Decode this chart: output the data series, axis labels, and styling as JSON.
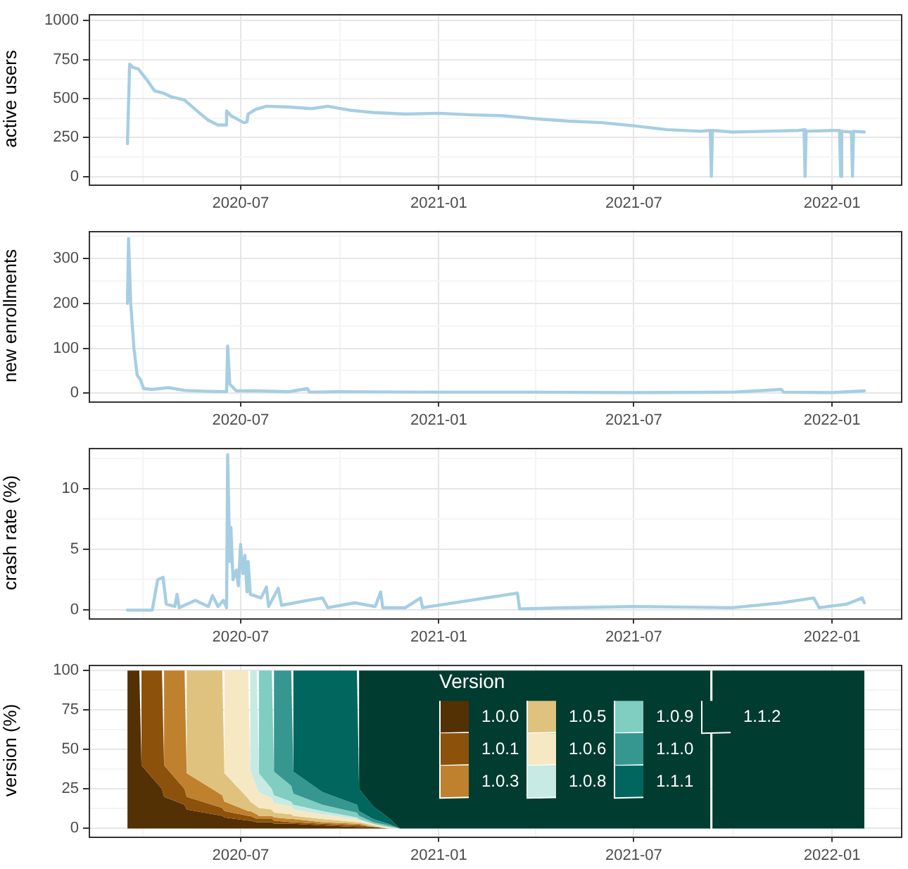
{
  "chart_data": [
    {
      "type": "line",
      "ylabel": "active users",
      "xlim": [
        "2020-02-11",
        "2022-03-06"
      ],
      "ylim": [
        -50,
        1045
      ],
      "xticks": [
        {
          "value": "2020-04",
          "label": null
        },
        "2020-07",
        {
          "value": "2020-10",
          "label": null
        },
        "2021-01",
        {
          "value": "2021-04",
          "label": null
        },
        "2021-07",
        {
          "value": "2021-10",
          "label": null
        },
        "2022-01"
      ],
      "yticks": [
        0,
        {
          "value": 125,
          "label": null
        },
        250,
        {
          "value": 375,
          "label": null
        },
        500,
        {
          "value": 625,
          "label": null
        },
        750,
        {
          "value": 875,
          "label": null
        },
        1000
      ],
      "grid": true,
      "series": [
        {
          "color": "#a6cee3",
          "x": [
            "2020-03-18",
            "2020-03-20",
            "2020-03-23",
            "2020-03-28",
            "2020-04-05",
            "2020-04-12",
            "2020-04-20",
            "2020-04-28",
            "2020-05-10",
            "2020-05-20",
            "2020-06-01",
            "2020-06-10",
            "2020-06-17",
            "2020-06-18",
            "2020-06-22",
            "2020-06-30",
            "2020-07-04",
            "2020-07-07",
            "2020-07-08",
            "2020-07-15",
            "2020-07-25",
            "2020-08-15",
            "2020-09-05",
            "2020-09-20",
            "2020-10-10",
            "2020-11-01",
            "2020-12-01",
            "2021-01-01",
            "2021-02-01",
            "2021-03-01",
            "2021-04-01",
            "2021-05-01",
            "2021-06-01",
            "2021-07-01",
            "2021-08-01",
            "2021-09-01",
            "2021-09-10",
            "2021-09-11",
            "2021-09-12",
            "2021-10-01",
            "2021-11-01",
            "2021-12-01",
            "2021-12-06",
            "2021-12-07",
            "2021-12-08",
            "2022-01-01",
            "2022-01-08",
            "2022-01-09",
            "2022-01-10",
            "2022-01-19",
            "2022-01-20",
            "2022-01-21",
            "2022-01-31"
          ],
          "values": [
            210,
            720,
            700,
            690,
            620,
            550,
            535,
            510,
            490,
            430,
            360,
            330,
            330,
            420,
            390,
            360,
            345,
            350,
            400,
            430,
            450,
            445,
            435,
            450,
            425,
            410,
            400,
            405,
            395,
            390,
            370,
            355,
            345,
            325,
            300,
            290,
            295,
            0,
            295,
            285,
            290,
            295,
            300,
            0,
            290,
            295,
            295,
            0,
            290,
            285,
            0,
            290,
            285
          ]
        }
      ]
    },
    {
      "type": "line",
      "ylabel": "new enrollments",
      "xlim": [
        "2020-02-11",
        "2022-03-06"
      ],
      "ylim": [
        -18,
        363
      ],
      "xticks": [
        {
          "value": "2020-04",
          "label": null
        },
        "2020-07",
        {
          "value": "2020-10",
          "label": null
        },
        "2021-01",
        {
          "value": "2021-04",
          "label": null
        },
        "2021-07",
        {
          "value": "2021-10",
          "label": null
        },
        "2022-01"
      ],
      "yticks": [
        0,
        {
          "value": 50,
          "label": null
        },
        100,
        {
          "value": 150,
          "label": null
        },
        200,
        {
          "value": 250,
          "label": null
        },
        300,
        {
          "value": 350,
          "label": null
        }
      ],
      "grid": true,
      "series": [
        {
          "color": "#a6cee3",
          "x": [
            "2020-03-18",
            "2020-03-19",
            "2020-03-21",
            "2020-03-24",
            "2020-03-27",
            "2020-03-30",
            "2020-04-02",
            "2020-04-10",
            "2020-04-25",
            "2020-05-10",
            "2020-06-01",
            "2020-06-18",
            "2020-06-19",
            "2020-06-21",
            "2020-06-27",
            "2020-07-15",
            "2020-08-15",
            "2020-09-01",
            "2020-09-03",
            "2020-10-01",
            "2021-01-01",
            "2021-04-01",
            "2021-07-01",
            "2021-10-01",
            "2021-11-15",
            "2021-11-17",
            "2022-01-01",
            "2022-01-31"
          ],
          "values": [
            200,
            345,
            200,
            100,
            40,
            30,
            10,
            8,
            12,
            6,
            4,
            3,
            105,
            20,
            5,
            5,
            3,
            10,
            2,
            3,
            2,
            2,
            1,
            2,
            8,
            2,
            1,
            5
          ]
        }
      ]
    },
    {
      "type": "line",
      "ylabel": "crash rate (%)",
      "xlim": [
        "2020-02-11",
        "2022-03-06"
      ],
      "ylim": [
        -0.65,
        13.4
      ],
      "xticks": [
        {
          "value": "2020-04",
          "label": null
        },
        "2020-07",
        {
          "value": "2020-10",
          "label": null
        },
        "2021-01",
        {
          "value": "2021-04",
          "label": null
        },
        "2021-07",
        {
          "value": "2021-10",
          "label": null
        },
        "2022-01"
      ],
      "yticks": [
        0,
        {
          "value": 2.5,
          "label": null
        },
        5,
        {
          "value": 7.5,
          "label": null
        },
        10,
        {
          "value": 12.5,
          "label": null
        }
      ],
      "grid": true,
      "series": [
        {
          "color": "#a6cee3",
          "x": [
            "2020-03-18",
            "2020-04-10",
            "2020-04-15",
            "2020-04-20",
            "2020-04-23",
            "2020-05-01",
            "2020-05-03",
            "2020-05-05",
            "2020-05-20",
            "2020-06-01",
            "2020-06-05",
            "2020-06-10",
            "2020-06-15",
            "2020-06-18",
            "2020-06-19",
            "2020-06-21",
            "2020-06-22",
            "2020-06-24",
            "2020-06-27",
            "2020-06-29",
            "2020-07-01",
            "2020-07-03",
            "2020-07-05",
            "2020-07-07",
            "2020-07-08",
            "2020-07-10",
            "2020-07-20",
            "2020-07-25",
            "2020-07-27",
            "2020-08-05",
            "2020-08-08",
            "2020-09-01",
            "2020-09-15",
            "2020-09-20",
            "2020-10-15",
            "2020-11-03",
            "2020-11-08",
            "2020-11-10",
            "2020-12-01",
            "2020-12-15",
            "2020-12-17",
            "2021-03-15",
            "2021-03-17",
            "2021-05-01",
            "2021-07-01",
            "2021-10-01",
            "2021-11-15",
            "2021-12-15",
            "2021-12-20",
            "2022-01-15",
            "2022-01-29",
            "2022-01-31"
          ],
          "values": [
            0,
            0,
            2.5,
            2.7,
            0.5,
            0.3,
            1.3,
            0.2,
            0.8,
            0.3,
            1.2,
            0.3,
            0.8,
            0.2,
            12.8,
            4,
            6.8,
            2.5,
            3.3,
            2.0,
            5.4,
            3,
            4.5,
            1.5,
            4,
            1.3,
            1.0,
            1.9,
            0.3,
            1.8,
            0.4,
            0.8,
            1.0,
            0.2,
            0.6,
            0.3,
            1.5,
            0.2,
            0.2,
            1.0,
            0.2,
            1.4,
            0.1,
            0.2,
            0.3,
            0.2,
            0.6,
            1.0,
            0.2,
            0.5,
            1.0,
            0.6
          ]
        }
      ]
    },
    {
      "type": "area",
      "ylabel": "version (%)",
      "legend_title": "Version",
      "legend": "top right",
      "stacked": true,
      "xlim": [
        "2020-02-11",
        "2022-03-06"
      ],
      "ylim": [
        -5,
        104
      ],
      "xticks": [
        {
          "value": "2020-04",
          "label": null
        },
        "2020-07",
        {
          "value": "2020-10",
          "label": null
        },
        "2021-01",
        {
          "value": "2021-04",
          "label": null
        },
        "2021-07",
        {
          "value": "2021-10",
          "label": null
        },
        "2022-01"
      ],
      "yticks": [
        0,
        {
          "value": 12.5,
          "label": null
        },
        25,
        {
          "value": 37.5,
          "label": null
        },
        50,
        {
          "value": 62.5,
          "label": null
        },
        75,
        {
          "value": 87.5,
          "label": null
        },
        100
      ],
      "grid": true,
      "x": [
        "2020-03-18",
        "2020-03-29",
        "2020-03-31",
        "2020-04-19",
        "2020-04-21",
        "2020-05-10",
        "2020-05-12",
        "2020-06-14",
        "2020-06-16",
        "2020-07-08",
        "2020-07-10",
        "2020-07-16",
        "2020-07-18",
        "2020-07-30",
        "2020-08-01",
        "2020-08-17",
        "2020-08-19",
        "2020-09-15",
        "2020-10-17",
        "2020-10-19",
        "2020-11-01",
        "2020-11-15",
        "2020-11-26",
        "2021-09-10",
        "2021-09-11",
        "2021-09-12",
        "2022-01-31"
      ],
      "series": [
        {
          "name": "1.0.0",
          "color": "#543005",
          "values": [
            100,
            100,
            40,
            25,
            20,
            15,
            12,
            8,
            7,
            5,
            5,
            4,
            4,
            4,
            3,
            3,
            3,
            2,
            1,
            1,
            1,
            0,
            null,
            null,
            null,
            null,
            null
          ]
        },
        {
          "name": "1.0.1",
          "color": "#8c510a",
          "values": [
            null,
            null,
            60,
            75,
            20,
            10,
            8,
            5,
            4,
            3,
            3,
            2,
            2,
            2,
            2,
            1,
            1,
            1,
            1,
            1,
            0,
            null,
            null,
            null,
            null,
            null,
            null
          ]
        },
        {
          "name": "1.0.3",
          "color": "#bf812d",
          "values": [
            null,
            null,
            null,
            null,
            60,
            75,
            15,
            8,
            6,
            3,
            3,
            3,
            2,
            2,
            2,
            2,
            2,
            1,
            1,
            1,
            0,
            null,
            null,
            null,
            null,
            null,
            null
          ]
        },
        {
          "name": "1.0.5",
          "color": "#dfc27d",
          "values": [
            null,
            null,
            null,
            null,
            null,
            null,
            65,
            79,
            18,
            8,
            6,
            5,
            5,
            4,
            3,
            3,
            2,
            2,
            1,
            1,
            1,
            0,
            null,
            null,
            null,
            null,
            null
          ]
        },
        {
          "name": "1.0.6",
          "color": "#f6e8c3",
          "values": [
            null,
            null,
            null,
            null,
            null,
            null,
            null,
            null,
            65,
            81,
            20,
            12,
            10,
            7,
            6,
            5,
            4,
            3,
            2,
            1,
            1,
            1,
            0,
            null,
            null,
            null,
            null
          ]
        },
        {
          "name": "1.0.8",
          "color": "#c7eae5",
          "values": [
            null,
            null,
            null,
            null,
            null,
            null,
            null,
            null,
            null,
            null,
            63,
            74,
            12,
            6,
            5,
            3,
            3,
            2,
            1,
            1,
            0,
            null,
            null,
            null,
            null,
            null,
            null
          ]
        },
        {
          "name": "1.0.9",
          "color": "#80cdc1",
          "values": [
            null,
            null,
            null,
            null,
            null,
            null,
            null,
            null,
            null,
            null,
            null,
            null,
            65,
            75,
            15,
            10,
            7,
            4,
            3,
            2,
            1,
            1,
            0,
            null,
            null,
            null,
            null
          ]
        },
        {
          "name": "1.1.0",
          "color": "#35978f",
          "values": [
            null,
            null,
            null,
            null,
            null,
            null,
            null,
            null,
            null,
            null,
            null,
            null,
            null,
            null,
            64,
            73,
            14,
            8,
            5,
            3,
            2,
            1,
            0,
            null,
            null,
            null,
            null
          ]
        },
        {
          "name": "1.1.1",
          "color": "#01665e",
          "values": [
            null,
            null,
            null,
            null,
            null,
            null,
            null,
            null,
            null,
            null,
            null,
            null,
            null,
            null,
            null,
            null,
            64,
            77,
            85,
            14,
            8,
            4,
            0,
            null,
            null,
            null,
            null
          ]
        },
        {
          "name": "1.1.2",
          "color": "#003c30",
          "values": [
            null,
            null,
            null,
            null,
            null,
            null,
            null,
            null,
            null,
            null,
            null,
            null,
            null,
            null,
            null,
            null,
            null,
            null,
            null,
            75,
            86,
            93,
            100,
            100,
            null,
            100,
            100
          ]
        }
      ]
    }
  ]
}
